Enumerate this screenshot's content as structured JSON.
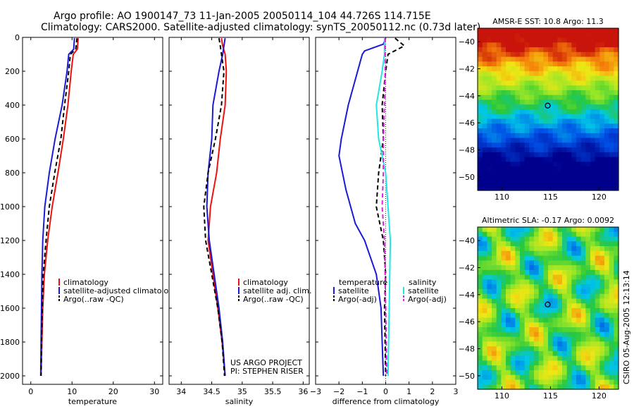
{
  "header": {
    "line1": "Argo profile: AO 1900147_73 11-Jan-2005 20050114_104 44.726S 114.715E",
    "line2": "Climatology: CARS2000. Satellite-adjusted climatology: synTS_20050112.nc (0.73d later)"
  },
  "colors": {
    "climatology": "#ee1111",
    "satellite": "#1a1ad6",
    "argo": "#000000",
    "sal_satellite": "#22e6e6",
    "sal_argo": "#dd22dd",
    "marker": "#000000"
  },
  "chart_data": [
    {
      "type": "line",
      "xlabel": "temperature",
      "ylabel": "",
      "xlim": [
        -2,
        32
      ],
      "ylim": [
        2050,
        0
      ],
      "xticks": [
        0,
        10,
        20,
        30
      ],
      "yticks": [
        0,
        200,
        400,
        600,
        800,
        1000,
        1200,
        1400,
        1600,
        1800,
        2000
      ],
      "legend_position": "lower-right",
      "series": [
        {
          "name": "climatology",
          "style": "solid",
          "color_key": "climatology",
          "x": [
            11.5,
            11.3,
            10.3,
            9.8,
            9.0,
            7.9,
            6.6,
            5.2,
            4.1,
            3.3,
            2.9,
            2.7,
            2.5
          ],
          "y": [
            5,
            70,
            100,
            200,
            400,
            600,
            800,
            1000,
            1200,
            1400,
            1600,
            1800,
            2000
          ]
        },
        {
          "name": "satellite-adjusted climatology",
          "style": "solid",
          "color_key": "satellite",
          "x": [
            10.6,
            10.4,
            9.2,
            8.8,
            7.6,
            5.9,
            4.5,
            3.4,
            2.9,
            2.7,
            2.6,
            2.5,
            2.4
          ],
          "y": [
            5,
            70,
            100,
            200,
            400,
            600,
            800,
            1000,
            1200,
            1400,
            1600,
            1800,
            2000
          ]
        },
        {
          "name": "Argo(..raw -QC)",
          "style": "dashed",
          "color_key": "argo",
          "x": [
            11.2,
            10.9,
            9.6,
            9.2,
            8.2,
            7.3,
            5.8,
            4.5,
            3.7,
            3.0,
            2.8,
            2.6,
            2.5
          ],
          "y": [
            5,
            70,
            100,
            200,
            400,
            600,
            800,
            1000,
            1200,
            1400,
            1600,
            1800,
            2000
          ]
        }
      ],
      "legend": [
        {
          "text": "climatology",
          "color_key": "climatology",
          "style": "solid"
        },
        {
          "text": "satellite-adjusted climatology",
          "color_key": "satellite",
          "style": "solid"
        },
        {
          "text": "Argo(..raw -QC)",
          "color_key": "argo",
          "style": "dashed"
        }
      ]
    },
    {
      "type": "line",
      "xlabel": "salinity",
      "ylabel": "",
      "xlim": [
        33.8,
        36.1
      ],
      "ylim": [
        2050,
        0
      ],
      "xticks": [
        34,
        34.5,
        35,
        35.5,
        36
      ],
      "legend_position": "lower-right",
      "note_lines": [
        "US ARGO PROJECT",
        "PI: STEPHEN RISER"
      ],
      "series": [
        {
          "name": "climatology",
          "style": "solid",
          "color_key": "climatology",
          "x": [
            34.66,
            34.68,
            34.72,
            34.74,
            34.72,
            34.64,
            34.58,
            34.48,
            34.44,
            34.52,
            34.6,
            34.67,
            34.72
          ],
          "y": [
            5,
            50,
            100,
            200,
            400,
            600,
            800,
            1000,
            1200,
            1400,
            1600,
            1800,
            2000
          ]
        },
        {
          "name": "satellite adj. clim.",
          "style": "solid",
          "color_key": "satellite",
          "x": [
            34.72,
            34.7,
            34.68,
            34.62,
            34.52,
            34.5,
            34.44,
            34.42,
            34.46,
            34.54,
            34.62,
            34.68,
            34.72
          ],
          "y": [
            5,
            50,
            100,
            200,
            400,
            600,
            800,
            1000,
            1200,
            1400,
            1600,
            1800,
            2000
          ]
        },
        {
          "name": "Argo(..raw -QC)",
          "style": "dashed",
          "color_key": "argo",
          "x": [
            34.62,
            34.64,
            34.66,
            34.7,
            34.66,
            34.56,
            34.44,
            34.37,
            34.4,
            34.5,
            34.6,
            34.67,
            34.71
          ],
          "y": [
            5,
            50,
            100,
            200,
            400,
            600,
            800,
            1000,
            1200,
            1400,
            1600,
            1800,
            2000
          ]
        }
      ],
      "legend": [
        {
          "text": "climatology",
          "color_key": "climatology",
          "style": "solid"
        },
        {
          "text": "satellite adj. clim.",
          "color_key": "satellite",
          "style": "solid"
        },
        {
          "text": "Argo(..raw -QC)",
          "color_key": "argo",
          "style": "dashed"
        }
      ]
    },
    {
      "type": "line",
      "xlabel": "difference from climatology",
      "ylabel": "",
      "xlim": [
        -3,
        3
      ],
      "ylim": [
        2050,
        0
      ],
      "xticks": [
        -3,
        -2,
        -1,
        0,
        1,
        2,
        3
      ],
      "zero_line": true,
      "legend_position": "lower-middle",
      "series": [
        {
          "name": "temperature satellite",
          "style": "solid",
          "color_key": "satellite",
          "x": [
            0.0,
            -0.1,
            -0.9,
            -1.0,
            -1.6,
            -1.9,
            -2.0,
            -1.7,
            -1.3,
            -0.9,
            -0.4,
            -0.2,
            -0.15,
            -0.1
          ],
          "y": [
            5,
            40,
            80,
            100,
            400,
            600,
            700,
            900,
            1100,
            1200,
            1400,
            1600,
            1800,
            2000
          ]
        },
        {
          "name": "temperature Argo(-adj)",
          "style": "dashed",
          "color_key": "argo",
          "x": [
            0.4,
            0.8,
            0.1,
            0.0,
            -0.15,
            -0.1,
            -0.3,
            -0.4,
            -0.1,
            0.0,
            -0.05,
            0.0
          ],
          "y": [
            5,
            50,
            100,
            200,
            400,
            600,
            800,
            1000,
            1200,
            1400,
            1600,
            2000
          ]
        },
        {
          "name": "salinity satellite",
          "style": "solid",
          "color_key": "sal_satellite",
          "x": [
            -0.05,
            -0.05,
            -0.15,
            -0.4,
            -0.3,
            0.0,
            0.1,
            0.2,
            0.15,
            0.1
          ],
          "y": [
            5,
            100,
            200,
            400,
            600,
            800,
            1000,
            1200,
            1600,
            2000
          ]
        },
        {
          "name": "salinity Argo(-adj)",
          "style": "dashed",
          "color_key": "sal_argo",
          "x": [
            -0.02,
            -0.02,
            -0.05,
            -0.1,
            -0.1,
            -0.15,
            -0.05,
            0.0,
            0.05
          ],
          "y": [
            5,
            200,
            400,
            600,
            800,
            1000,
            1200,
            1600,
            2000
          ]
        }
      ],
      "legend_temp": {
        "title": "temperature",
        "items": [
          {
            "text": "satellite",
            "color_key": "satellite",
            "style": "solid"
          },
          {
            "text": "Argo(-adj)",
            "color_key": "argo",
            "style": "dashed"
          }
        ]
      },
      "legend_sal": {
        "title": "salinity",
        "items": [
          {
            "text": "satellite",
            "color_key": "sal_satellite",
            "style": "solid"
          },
          {
            "text": "Argo(-adj)",
            "color_key": "sal_argo",
            "style": "dashed"
          }
        ]
      }
    },
    {
      "type": "heatmap",
      "title": "AMSR-E SST: 10.8 Argo: 11.3",
      "xlim": [
        107.5,
        122
      ],
      "ylim": [
        -51,
        -39
      ],
      "xticks": [
        110,
        115,
        120
      ],
      "yticks": [
        -40,
        -42,
        -44,
        -46,
        -48,
        -50
      ],
      "marker": {
        "lon": 114.715,
        "lat": -44.726
      }
    },
    {
      "type": "heatmap",
      "title": "Altimetric SLA: -0.17 Argo: 0.0092",
      "xlim": [
        107.5,
        122
      ],
      "ylim": [
        -51,
        -39
      ],
      "xticks": [
        110,
        115,
        120
      ],
      "yticks": [
        -40,
        -42,
        -44,
        -46,
        -48,
        -50
      ],
      "marker": {
        "lon": 114.715,
        "lat": -44.726
      }
    }
  ],
  "side_label": "CSIRO 05-Aug-2005 12:13:14"
}
